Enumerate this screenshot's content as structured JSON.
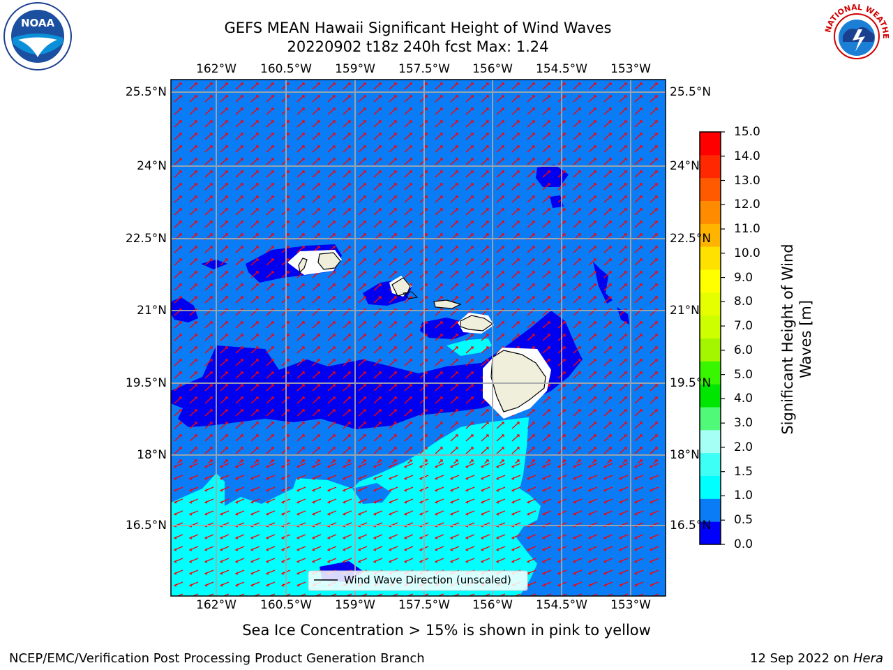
{
  "header": {
    "title_line1": "GEFS MEAN Hawaii Significant Height of Wind Waves",
    "title_line2": "20220902 t18z 240h fcst   Max: 1.24"
  },
  "logos": {
    "left": {
      "name": "noaa-logo",
      "text": "NOAA"
    },
    "right": {
      "name": "national-weather-service-logo",
      "text": "NATIONAL WEATHER SERVICE"
    }
  },
  "map": {
    "lon_labels": [
      "162°W",
      "160.5°W",
      "159°W",
      "157.5°W",
      "156°W",
      "154.5°W",
      "153°W"
    ],
    "lat_labels": [
      "25.5°N",
      "24°N",
      "22.5°N",
      "21°N",
      "19.5°N",
      "18°N",
      "16.5°N"
    ],
    "ocean_color": "#0a7cf5",
    "low_color": "#0000f0",
    "cyan_color": "#00ffff",
    "land_color": "#efefdc",
    "arrow_color": "#ff0000",
    "legend_label": "Wind Wave Direction (unscaled)"
  },
  "colorbar": {
    "label": "Significant Height of Wind Waves [m]",
    "label_line1": "Significant Height of Wind",
    "label_line2": "Waves [m]",
    "ticks": [
      "0.0",
      "0.5",
      "1.0",
      "1.5",
      "2.0",
      "3.0",
      "4.0",
      "5.0",
      "6.0",
      "7.0",
      "8.0",
      "9.0",
      "10.0",
      "11.0",
      "12.0",
      "13.0",
      "14.0",
      "15.0"
    ],
    "colors": [
      "#0000ff",
      "#0a7cf5",
      "#00ffff",
      "#3dfff5",
      "#a6fff5",
      "#50fa78",
      "#00e600",
      "#38f500",
      "#a4f500",
      "#cdff00",
      "#e6ff00",
      "#ffff00",
      "#ffe100",
      "#ffb400",
      "#ff8c00",
      "#ff5a00",
      "#ff2800",
      "#ff0000"
    ]
  },
  "notes": {
    "sea_ice": "Sea Ice Concentration > 15% is shown in pink to yellow",
    "credit": "NCEP/EMC/Verification Post Processing Product Generation Branch",
    "date": "12 Sep 2022 on ",
    "machine": "Hera"
  }
}
